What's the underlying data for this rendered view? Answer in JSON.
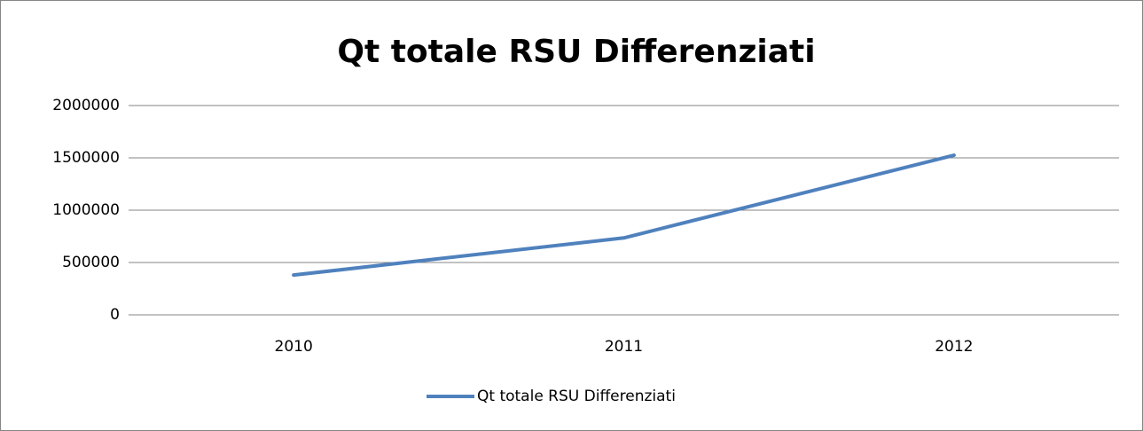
{
  "chart_data": {
    "type": "line",
    "title": "Qt totale RSU Differenziati",
    "categories": [
      "2010",
      "2011",
      "2012"
    ],
    "series": [
      {
        "name": "Qt totale RSU Differenziati",
        "color": "#4f81bd",
        "values": [
          380000,
          735000,
          1525000
        ]
      }
    ],
    "ylim": [
      0,
      2000000
    ],
    "yticks": [
      0,
      500000,
      1000000,
      1500000,
      2000000
    ],
    "grid": true,
    "legend": "bottom"
  }
}
